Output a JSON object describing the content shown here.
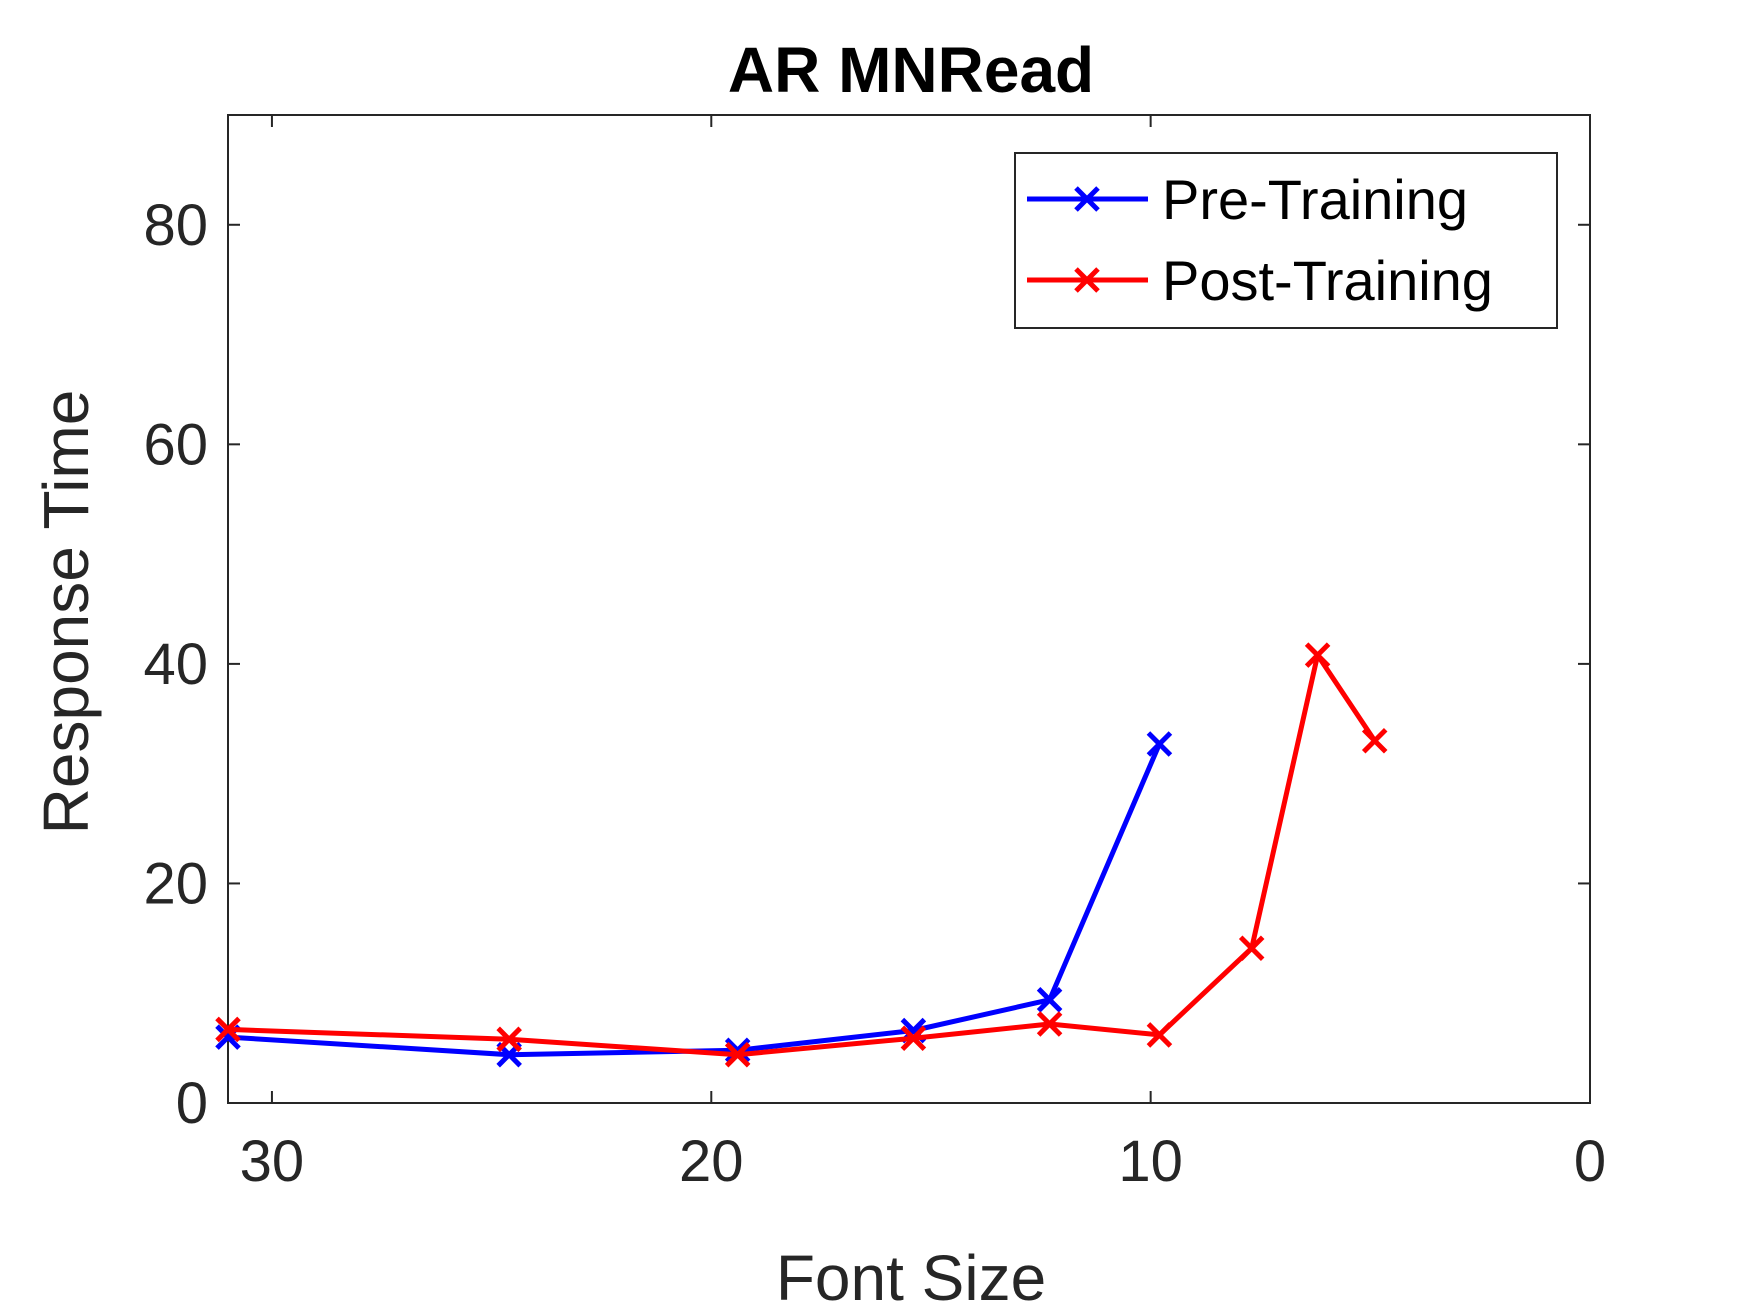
{
  "chart_data": {
    "type": "line",
    "title": "AR MNRead",
    "xlabel": "Font Size",
    "ylabel": "Response Time",
    "xlim": [
      31,
      0
    ],
    "ylim": [
      0,
      90
    ],
    "x_reversed": true,
    "xticks": [
      30,
      20,
      10,
      0
    ],
    "yticks": [
      0,
      20,
      40,
      60,
      80
    ],
    "grid": false,
    "legend_position": "top-right",
    "series": [
      {
        "name": "Pre-Training",
        "color": "#0000ff",
        "marker": "x",
        "x": [
          31,
          24.6,
          19.4,
          15.4,
          12.3,
          9.8
        ],
        "y": [
          6.0,
          4.4,
          4.8,
          6.6,
          9.4,
          32.7
        ]
      },
      {
        "name": "Post-Training",
        "color": "#ff0000",
        "marker": "x",
        "x": [
          31,
          24.6,
          19.4,
          15.4,
          12.3,
          9.8,
          7.7,
          6.2,
          4.9
        ],
        "y": [
          6.7,
          5.8,
          4.4,
          5.9,
          7.2,
          6.2,
          14.1,
          40.8,
          33.0
        ]
      }
    ]
  }
}
